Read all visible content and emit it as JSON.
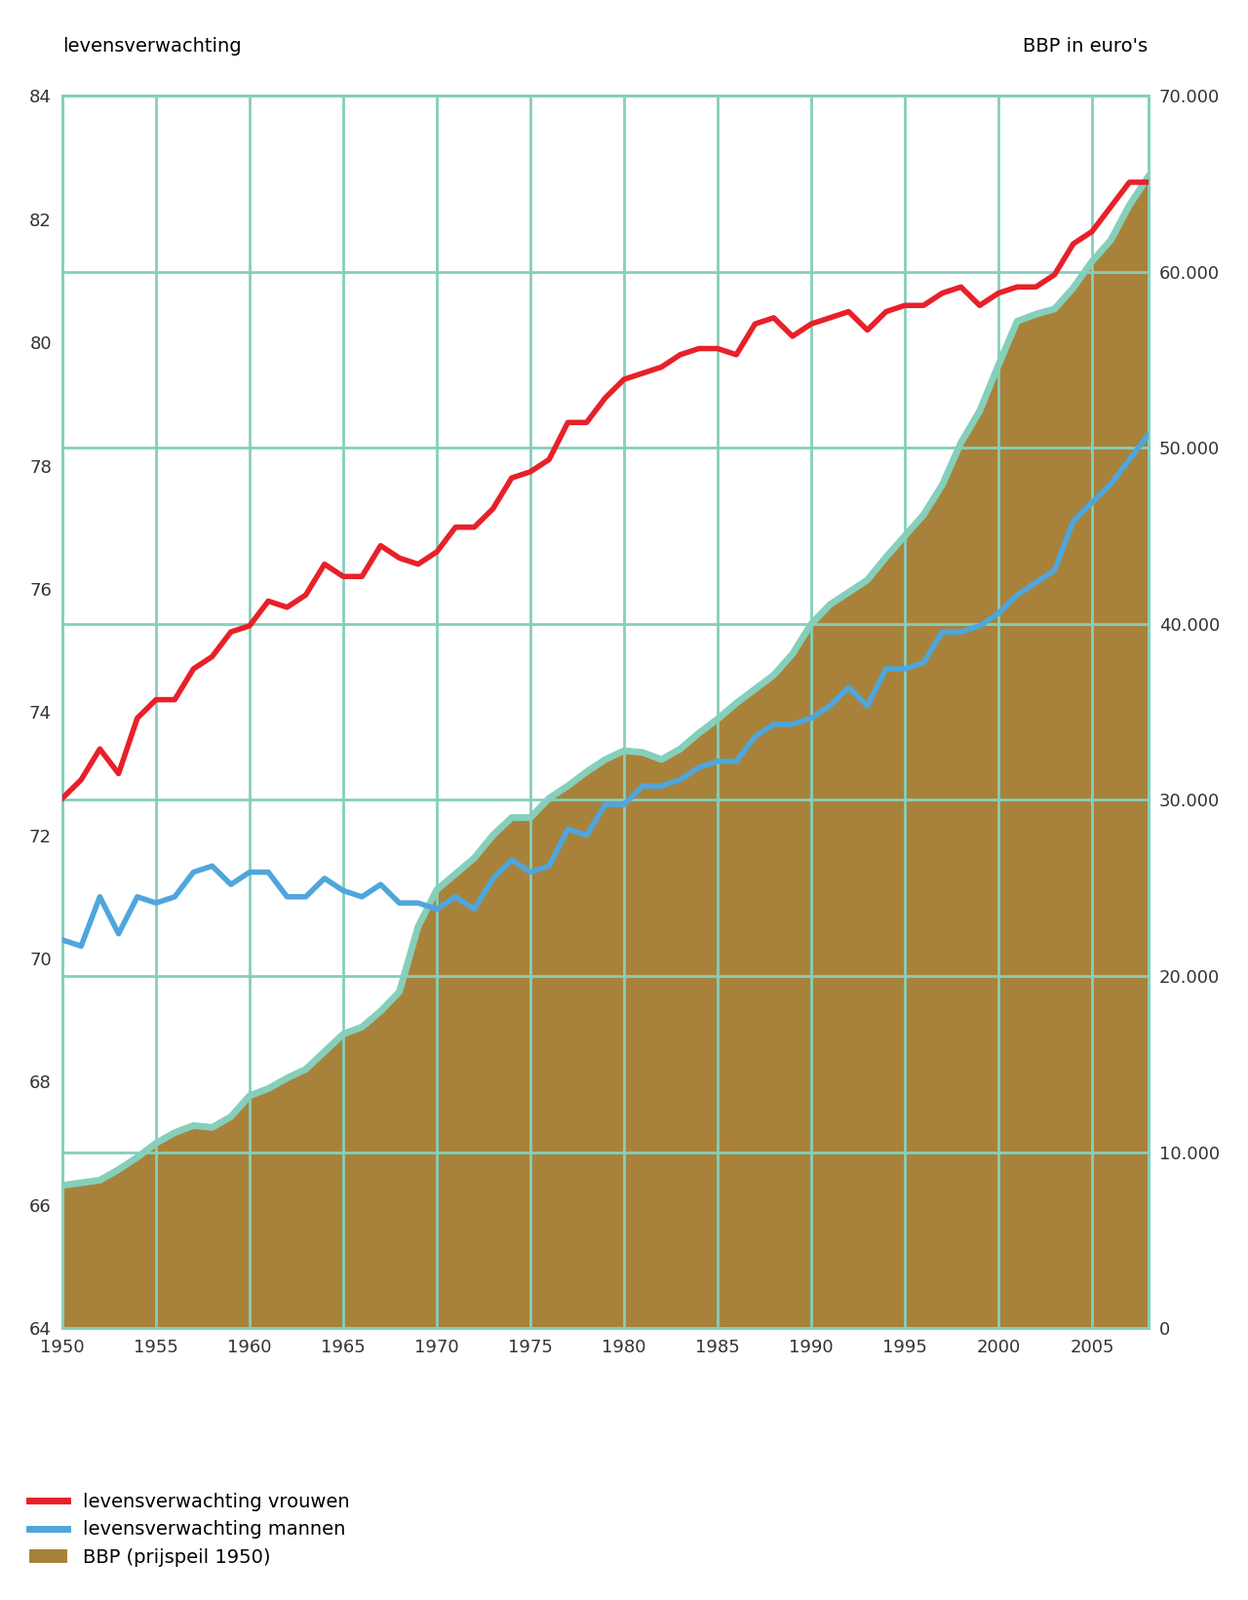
{
  "chart_data": {
    "type": "line",
    "y_label": "levensverwachting",
    "y2_label": "BBP in euro's",
    "x": [
      1950,
      1951,
      1952,
      1953,
      1954,
      1955,
      1956,
      1957,
      1958,
      1959,
      1960,
      1961,
      1962,
      1963,
      1964,
      1965,
      1966,
      1967,
      1968,
      1969,
      1970,
      1971,
      1972,
      1973,
      1974,
      1975,
      1976,
      1977,
      1978,
      1979,
      1980,
      1981,
      1982,
      1983,
      1984,
      1985,
      1986,
      1987,
      1988,
      1989,
      1990,
      1991,
      1992,
      1993,
      1994,
      1995,
      1996,
      1997,
      1998,
      1999,
      2000,
      2001,
      2002,
      2003,
      2004,
      2005,
      2006,
      2007,
      2008
    ],
    "series": [
      {
        "name": "levensverwachting vrouwen",
        "color": "#e8202a",
        "type": "line",
        "values": [
          72.6,
          72.9,
          73.4,
          73.0,
          73.9,
          74.2,
          74.2,
          74.7,
          74.9,
          75.3,
          75.4,
          75.8,
          75.7,
          75.9,
          76.4,
          76.2,
          76.2,
          76.7,
          76.5,
          76.4,
          76.6,
          77.0,
          77.0,
          77.3,
          77.8,
          77.9,
          78.1,
          78.7,
          78.7,
          79.1,
          79.4,
          79.5,
          79.6,
          79.8,
          79.9,
          79.9,
          79.8,
          80.3,
          80.4,
          80.1,
          80.3,
          80.4,
          80.5,
          80.2,
          80.5,
          80.6,
          80.6,
          80.8,
          80.9,
          80.6,
          80.8,
          80.9,
          80.9,
          81.1,
          81.6,
          81.8,
          82.2,
          82.6,
          82.6
        ]
      },
      {
        "name": "levensverwachting mannen",
        "color": "#4ea6dc",
        "type": "line",
        "values": [
          70.3,
          70.2,
          71.0,
          70.4,
          71.0,
          70.9,
          71.0,
          71.4,
          71.5,
          71.2,
          71.4,
          71.4,
          71.0,
          71.0,
          71.3,
          71.1,
          71.0,
          71.2,
          70.9,
          70.9,
          70.8,
          71.0,
          70.8,
          71.3,
          71.6,
          71.4,
          71.5,
          72.1,
          72.0,
          72.5,
          72.5,
          72.8,
          72.8,
          72.9,
          73.1,
          73.2,
          73.2,
          73.6,
          73.8,
          73.8,
          73.9,
          74.1,
          74.4,
          74.1,
          74.7,
          74.7,
          74.8,
          75.3,
          75.3,
          75.4,
          75.6,
          75.9,
          76.1,
          76.3,
          77.1,
          77.4,
          77.7,
          78.1,
          78.5
        ]
      },
      {
        "name": "BBP (prijspeil 1950)",
        "color": "#a8823a",
        "type": "area",
        "axis": "y2",
        "values": [
          8100,
          8250,
          8400,
          9000,
          9700,
          10500,
          11100,
          11500,
          11400,
          12000,
          13200,
          13600,
          14200,
          14700,
          15700,
          16700,
          17100,
          18000,
          19100,
          22800,
          24900,
          25800,
          26700,
          28000,
          29000,
          29000,
          30100,
          30800,
          31600,
          32300,
          32800,
          32700,
          32300,
          32900,
          33800,
          34600,
          35500,
          36300,
          37100,
          38300,
          40000,
          41100,
          41800,
          42500,
          43800,
          45000,
          46200,
          47900,
          50300,
          52100,
          54700,
          57200,
          57600,
          57900,
          59100,
          60600,
          61800,
          63800,
          65400
        ]
      }
    ],
    "xlim": [
      1950,
      2008
    ],
    "xticks": [
      1950,
      1955,
      1960,
      1965,
      1970,
      1975,
      1980,
      1985,
      1990,
      1995,
      2000,
      2005
    ],
    "ylim": [
      64,
      84
    ],
    "yticks": [
      64,
      66,
      68,
      70,
      72,
      74,
      76,
      78,
      80,
      82,
      84
    ],
    "y2lim": [
      0,
      70000
    ],
    "y2ticks": [
      0,
      {
        "value": 10000,
        "label": "10.000"
      },
      {
        "value": 20000,
        "label": "20.000"
      },
      {
        "value": 30000,
        "label": "30.000"
      },
      {
        "value": 40000,
        "label": "40.000"
      },
      {
        "value": 50000,
        "label": "50.000"
      },
      {
        "value": 60000,
        "label": "60.000"
      },
      {
        "value": 70000,
        "label": "70.000"
      }
    ],
    "grid": true,
    "legend": "lower left"
  }
}
